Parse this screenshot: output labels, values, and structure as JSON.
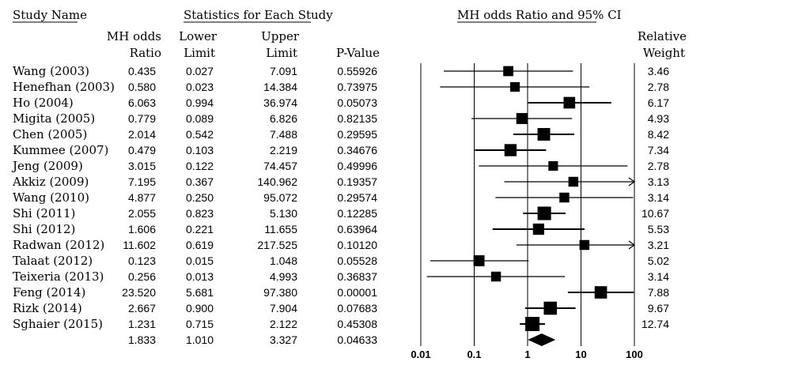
{
  "headers": {
    "study_name": "Study Name",
    "statistics": "Statistics for Each Study",
    "ci_title": "MH odds Ratio and 95% CI",
    "col_or_1": "MH odds",
    "col_or_2": "Ratio",
    "col_lower_1": "Lower",
    "col_lower_2": "Limit",
    "col_upper_1": "Upper",
    "col_upper_2": "Limit",
    "col_p": "P-Value",
    "col_weight_1": "Relative",
    "col_weight_2": "Weight"
  },
  "chart_data": {
    "type": "table",
    "plot_type": "forest",
    "x_scale": "log",
    "x_ticks": [
      0.01,
      0.1,
      1,
      10,
      100
    ],
    "x_tick_labels": [
      "0.01",
      "0.1",
      "1",
      "10",
      "100"
    ],
    "xlim": [
      0.01,
      100
    ],
    "studies": [
      {
        "name": "Wang (2003)",
        "or": "0.435",
        "lower": "0.027",
        "upper": "7.091",
        "p": "0.55926",
        "weight": "3.46"
      },
      {
        "name": "Henefhan (2003)",
        "or": "0.580",
        "lower": "0.023",
        "upper": "14.384",
        "p": "0.73975",
        "weight": "2.78"
      },
      {
        "name": "Ho (2004)",
        "or": "6.063",
        "lower": "0.994",
        "upper": "36.974",
        "p": "0.05073",
        "weight": "6.17"
      },
      {
        "name": "Migita (2005)",
        "or": "0.779",
        "lower": "0.089",
        "upper": "6.826",
        "p": "0.82135",
        "weight": "4.93"
      },
      {
        "name": "Chen (2005)",
        "or": "2.014",
        "lower": "0.542",
        "upper": "7.488",
        "p": "0.29595",
        "weight": "8.42"
      },
      {
        "name": "Kummee (2007)",
        "or": "0.479",
        "lower": "0.103",
        "upper": "2.219",
        "p": "0.34676",
        "weight": "7.34"
      },
      {
        "name": "Jeng (2009)",
        "or": "3.015",
        "lower": "0.122",
        "upper": "74.457",
        "p": "0.49996",
        "weight": "2.78"
      },
      {
        "name": "Akkiz (2009)",
        "or": "7.195",
        "lower": "0.367",
        "upper": "140.962",
        "p": "0.19357",
        "weight": "3.13"
      },
      {
        "name": "Wang (2010)",
        "or": "4.877",
        "lower": "0.250",
        "upper": "95.072",
        "p": "0.29574",
        "weight": "3.14"
      },
      {
        "name": "Shi (2011)",
        "or": "2.055",
        "lower": "0.823",
        "upper": "5.130",
        "p": "0.12285",
        "weight": "10.67"
      },
      {
        "name": "Shi (2012)",
        "or": "1.606",
        "lower": "0.221",
        "upper": "11.655",
        "p": "0.63964",
        "weight": "5.53"
      },
      {
        "name": "Radwan (2012)",
        "or": "11.602",
        "lower": "0.619",
        "upper": "217.525",
        "p": "0.10120",
        "weight": "3.21"
      },
      {
        "name": "Talaat (2012)",
        "or": "0.123",
        "lower": "0.015",
        "upper": "1.048",
        "p": "0.05528",
        "weight": "5.02"
      },
      {
        "name": "Teixeria (2013)",
        "or": "0.256",
        "lower": "0.013",
        "upper": "4.993",
        "p": "0.36837",
        "weight": "3.14"
      },
      {
        "name": "Feng (2014)",
        "or": "23.520",
        "lower": "5.681",
        "upper": "97.380",
        "p": "0.00001",
        "weight": "7.88"
      },
      {
        "name": "Rizk (2014)",
        "or": "2.667",
        "lower": "0.900",
        "upper": "7.904",
        "p": "0.07683",
        "weight": "9.67"
      },
      {
        "name": "Sghaier (2015)",
        "or": "1.231",
        "lower": "0.715",
        "upper": "2.122",
        "p": "0.45308",
        "weight": "12.74"
      }
    ],
    "summary": {
      "or": "1.833",
      "lower": "1.010",
      "upper": "3.327",
      "p": "0.04633"
    }
  }
}
